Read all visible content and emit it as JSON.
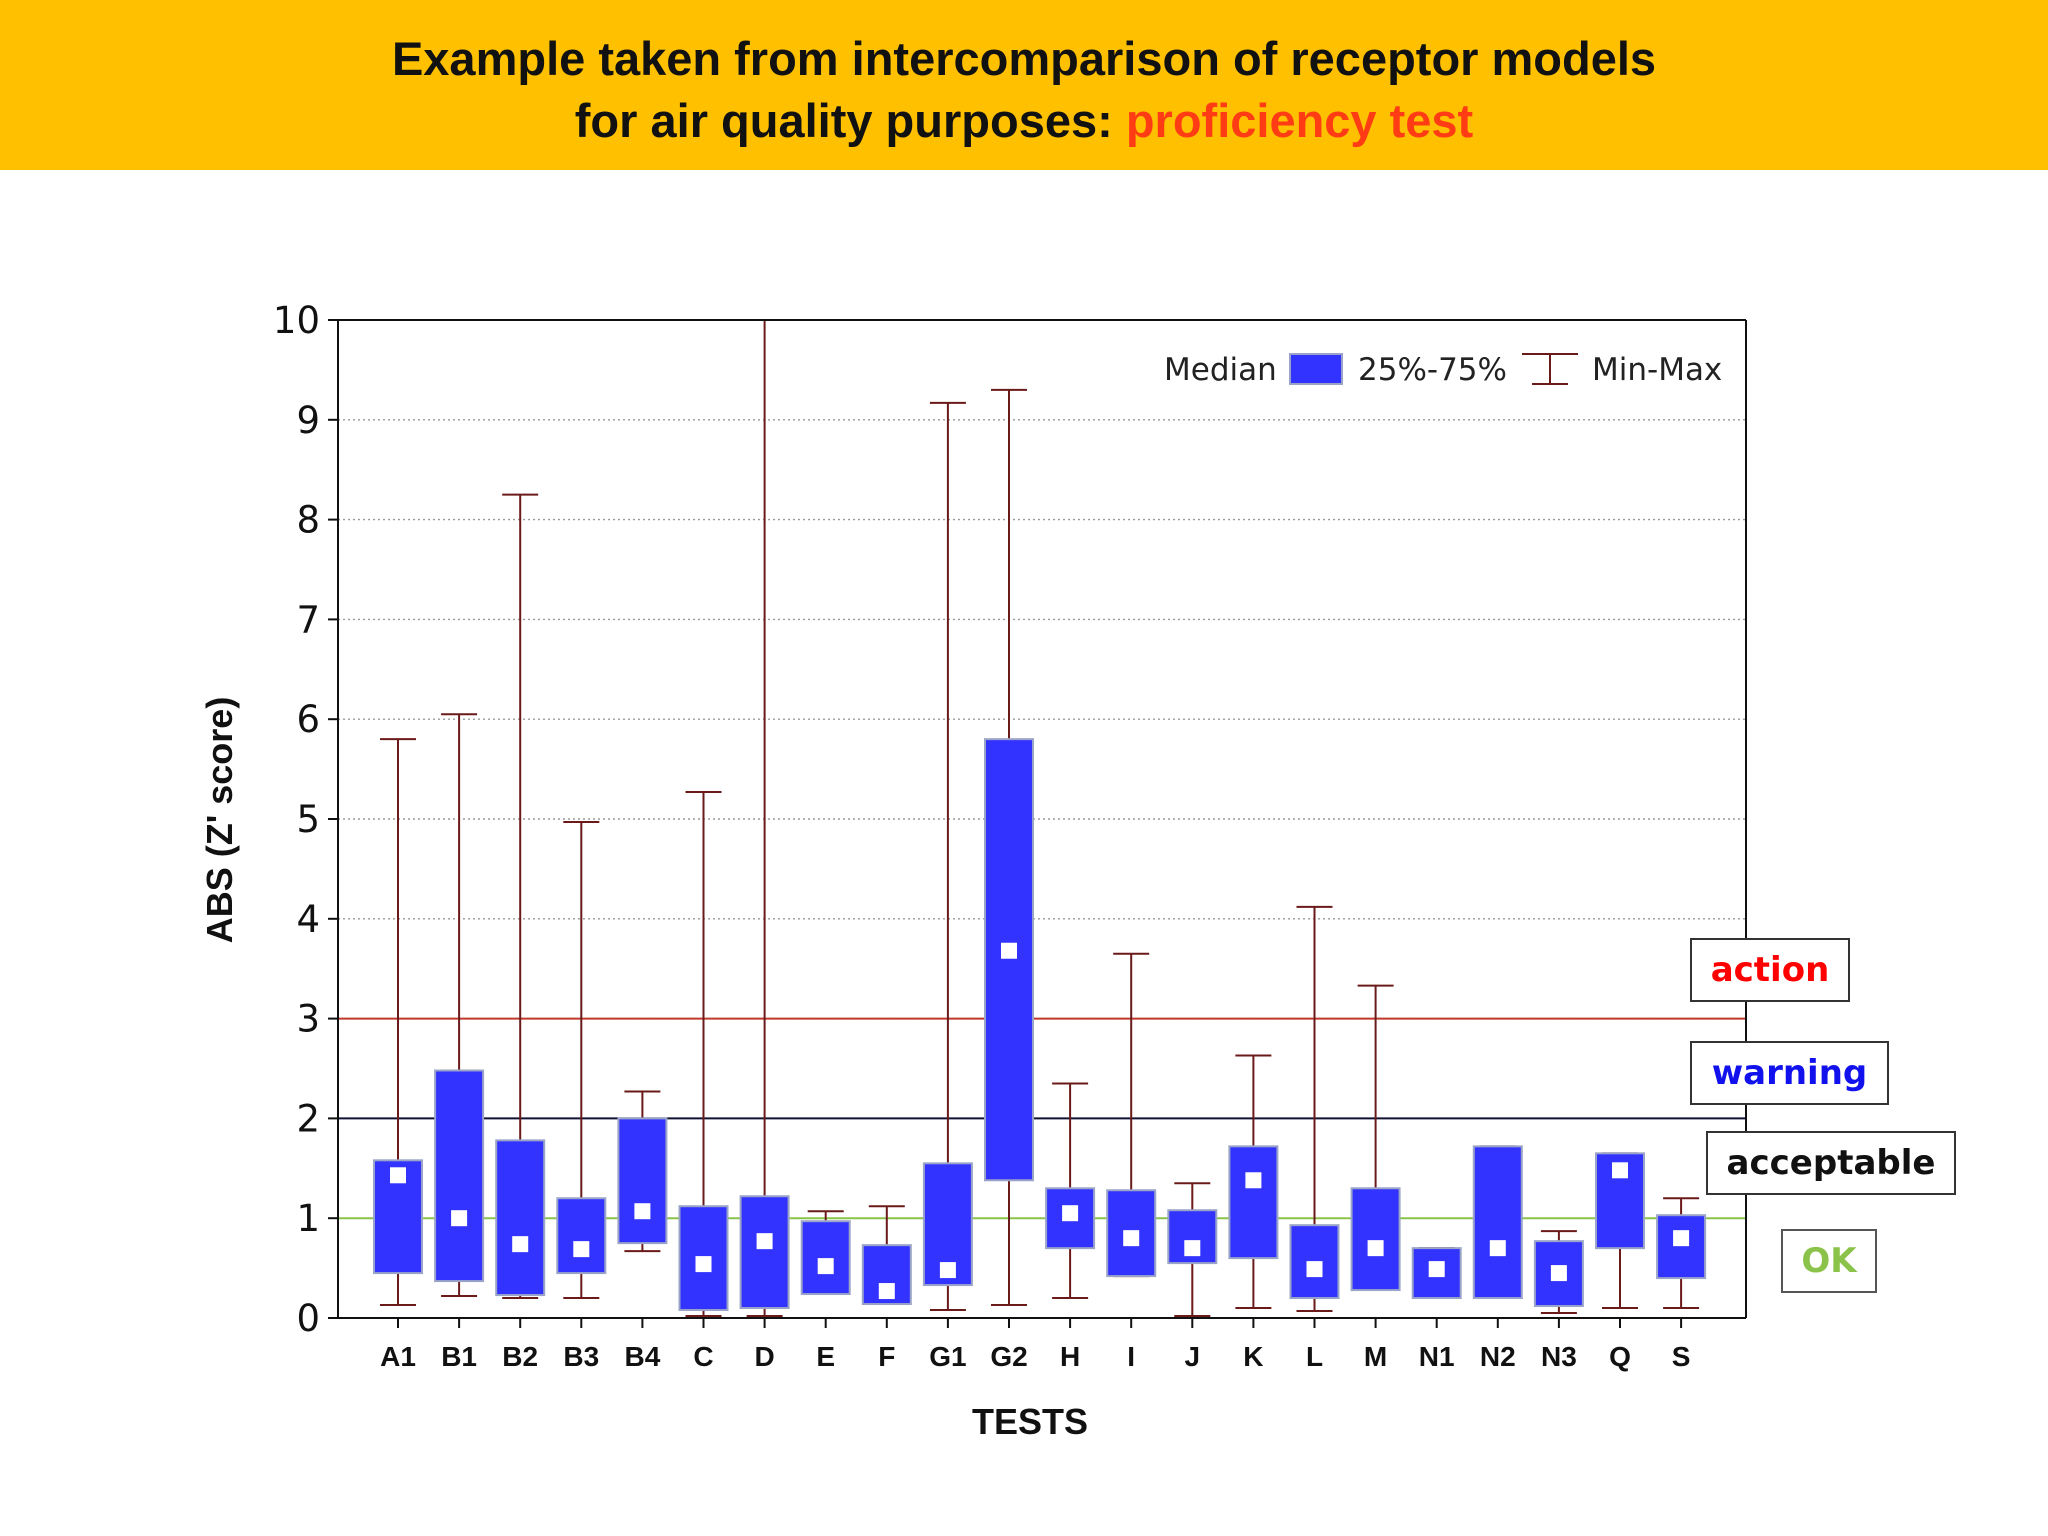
{
  "title": {
    "line1": "Example taken from intercomparison of receptor models",
    "line2_prefix": "for air quality purposes: ",
    "line2_accent": "proficiency test"
  },
  "colors": {
    "banner": "#ffc000",
    "accent": "#ff3c14",
    "box_fill": "#3333ff",
    "whisker": "#6b1a1a",
    "action": "#ff0000",
    "warning": "#1111ee",
    "acceptable": "#111111",
    "ok": "#8bc34a"
  },
  "zones": {
    "action": "action",
    "warning": "warning",
    "acceptable": "acceptable",
    "ok": "OK"
  },
  "chart_data": {
    "type": "box",
    "xlabel": "TESTS",
    "ylabel": "ABS (Z' score)",
    "ylim": [
      0,
      10
    ],
    "yticks": [
      0,
      1,
      2,
      3,
      4,
      5,
      6,
      7,
      8,
      9,
      10
    ],
    "legend": {
      "median": "Median",
      "box": "25%-75%",
      "range": "Min-Max",
      "position": "top-right"
    },
    "reference_lines": [
      {
        "value": 3,
        "label": "action",
        "color": "#c0392b"
      },
      {
        "value": 2,
        "label": "warning",
        "color": "#111133"
      },
      {
        "value": 1,
        "label": "OK",
        "color": "#8bc34a"
      }
    ],
    "categories": [
      "A1",
      "B1",
      "B2",
      "B3",
      "B4",
      "C",
      "D",
      "E",
      "F",
      "G1",
      "G2",
      "H",
      "I",
      "J",
      "K",
      "L",
      "M",
      "N1",
      "N2",
      "N3",
      "Q",
      "S"
    ],
    "series": [
      {
        "name": "A1",
        "min": 0.13,
        "q1": 0.45,
        "median": 1.43,
        "q3": 1.58,
        "max": 5.8
      },
      {
        "name": "B1",
        "min": 0.22,
        "q1": 0.37,
        "median": 1.0,
        "q3": 2.48,
        "max": 6.05
      },
      {
        "name": "B2",
        "min": 0.2,
        "q1": 0.23,
        "median": 0.74,
        "q3": 1.78,
        "max": 8.25
      },
      {
        "name": "B3",
        "min": 0.2,
        "q1": 0.45,
        "median": 0.69,
        "q3": 1.2,
        "max": 4.97
      },
      {
        "name": "B4",
        "min": 0.67,
        "q1": 0.75,
        "median": 1.07,
        "q3": 2.0,
        "max": 2.27
      },
      {
        "name": "C",
        "min": 0.02,
        "q1": 0.08,
        "median": 0.54,
        "q3": 1.12,
        "max": 5.27
      },
      {
        "name": "D",
        "min": 0.02,
        "q1": 0.1,
        "median": 0.77,
        "q3": 1.22,
        "max": 10.0
      },
      {
        "name": "E",
        "min": 0.24,
        "q1": 0.24,
        "median": 0.52,
        "q3": 0.97,
        "max": 1.07
      },
      {
        "name": "F",
        "min": 0.14,
        "q1": 0.14,
        "median": 0.27,
        "q3": 0.73,
        "max": 1.12
      },
      {
        "name": "G1",
        "min": 0.08,
        "q1": 0.33,
        "median": 0.48,
        "q3": 1.55,
        "max": 9.17
      },
      {
        "name": "G2",
        "min": 0.13,
        "q1": 1.38,
        "median": 3.68,
        "q3": 5.8,
        "max": 9.3
      },
      {
        "name": "H",
        "min": 0.2,
        "q1": 0.7,
        "median": 1.05,
        "q3": 1.3,
        "max": 2.35
      },
      {
        "name": "I",
        "min": 0.42,
        "q1": 0.42,
        "median": 0.8,
        "q3": 1.28,
        "max": 3.65
      },
      {
        "name": "J",
        "min": 0.02,
        "q1": 0.55,
        "median": 0.7,
        "q3": 1.08,
        "max": 1.35
      },
      {
        "name": "K",
        "min": 0.1,
        "q1": 0.6,
        "median": 1.38,
        "q3": 1.72,
        "max": 2.63
      },
      {
        "name": "L",
        "min": 0.07,
        "q1": 0.2,
        "median": 0.49,
        "q3": 0.93,
        "max": 4.12
      },
      {
        "name": "M",
        "min": 0.28,
        "q1": 0.28,
        "median": 0.7,
        "q3": 1.3,
        "max": 3.33
      },
      {
        "name": "N1",
        "min": 0.2,
        "q1": 0.2,
        "median": 0.49,
        "q3": 0.7,
        "max": 0.7
      },
      {
        "name": "N2",
        "min": 0.2,
        "q1": 0.2,
        "median": 0.7,
        "q3": 1.72,
        "max": 1.72
      },
      {
        "name": "N3",
        "min": 0.05,
        "q1": 0.12,
        "median": 0.45,
        "q3": 0.77,
        "max": 0.87
      },
      {
        "name": "Q",
        "min": 0.1,
        "q1": 0.7,
        "median": 1.48,
        "q3": 1.65,
        "max": 1.65
      },
      {
        "name": "S",
        "min": 0.1,
        "q1": 0.4,
        "median": 0.8,
        "q3": 1.03,
        "max": 1.2
      }
    ]
  }
}
